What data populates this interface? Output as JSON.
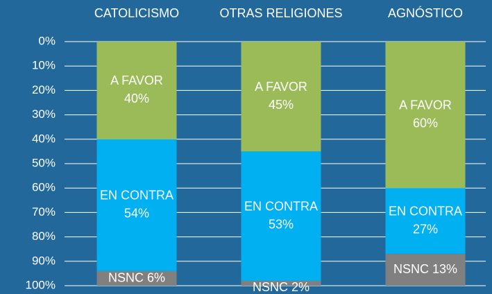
{
  "chart_data": {
    "type": "stacked-bar",
    "categories": [
      "CATOLICISMO",
      "OTRAS RELIGIONES",
      "AGNÓSTICO"
    ],
    "series": [
      {
        "name": "A FAVOR",
        "color": "#9bbb59",
        "values": [
          40,
          45,
          60
        ],
        "value_labels": [
          "40%",
          "45%",
          "60%"
        ]
      },
      {
        "name": "EN CONTRA",
        "color": "#00b0f0",
        "values": [
          54,
          53,
          27
        ],
        "value_labels": [
          "54%",
          "53%",
          "27%"
        ]
      },
      {
        "name": "NSNC",
        "color": "#808080",
        "values": [
          6,
          2,
          13
        ],
        "value_labels": [
          "6%",
          "2%",
          "13%"
        ]
      }
    ],
    "ylim": [
      0,
      100
    ],
    "y_inverted": true,
    "yticks": [
      {
        "value": 0,
        "label": "0%"
      },
      {
        "value": 10,
        "label": "10%"
      },
      {
        "value": 20,
        "label": "20%"
      },
      {
        "value": 30,
        "label": "30%"
      },
      {
        "value": 40,
        "label": "40%"
      },
      {
        "value": 50,
        "label": "50%"
      },
      {
        "value": 60,
        "label": "60%"
      },
      {
        "value": 70,
        "label": "70%"
      },
      {
        "value": 80,
        "label": "80%"
      },
      {
        "value": 90,
        "label": "90%"
      },
      {
        "value": {
          "value": 100,
          "label": "100%"
        },
        "label": "100%"
      }
    ],
    "grid": true
  }
}
